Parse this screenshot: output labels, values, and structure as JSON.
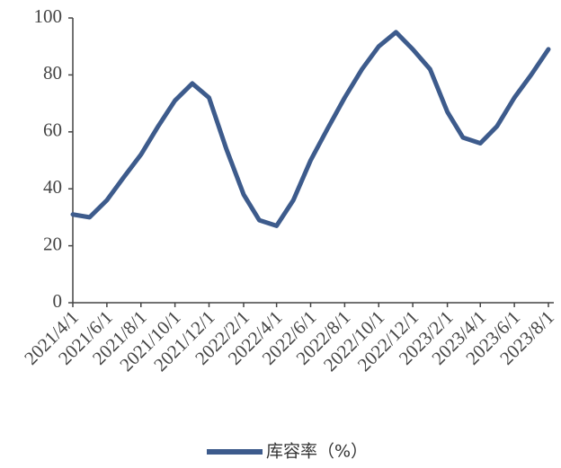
{
  "chart_data": {
    "type": "line",
    "x": [
      "2021/4/1",
      "2021/5/1",
      "2021/6/1",
      "2021/7/1",
      "2021/8/1",
      "2021/9/1",
      "2021/10/1",
      "2021/11/1",
      "2021/12/1",
      "2022/1/1",
      "2022/2/1",
      "2022/3/1",
      "2022/4/1",
      "2022/5/1",
      "2022/6/1",
      "2022/7/1",
      "2022/8/1",
      "2022/9/1",
      "2022/10/1",
      "2022/11/1",
      "2022/12/1",
      "2023/1/1",
      "2023/2/1",
      "2023/3/1",
      "2023/4/1",
      "2023/5/1",
      "2023/6/1",
      "2023/7/1",
      "2023/8/1"
    ],
    "series": [
      {
        "name": "库容率（%）",
        "color": "#3d5b8c",
        "values": [
          31,
          30,
          36,
          44,
          52,
          62,
          71,
          77,
          72,
          54,
          38,
          29,
          27,
          36,
          50,
          61,
          72,
          82,
          90,
          95,
          89,
          82,
          67,
          58,
          56,
          62,
          72,
          80,
          89
        ]
      }
    ],
    "xlim": [
      "2021/4/1",
      "2023/8/1"
    ],
    "xticks": [
      "2021/4/1",
      "2021/6/1",
      "2021/8/1",
      "2021/10/1",
      "2021/12/1",
      "2022/2/1",
      "2022/4/1",
      "2022/6/1",
      "2022/8/1",
      "2022/10/1",
      "2022/12/1",
      "2023/2/1",
      "2023/4/1",
      "2023/6/1",
      "2023/8/1"
    ],
    "ylim": [
      0,
      100
    ],
    "yticks": [
      0,
      20,
      40,
      60,
      80,
      100
    ],
    "legend": "bottom"
  }
}
